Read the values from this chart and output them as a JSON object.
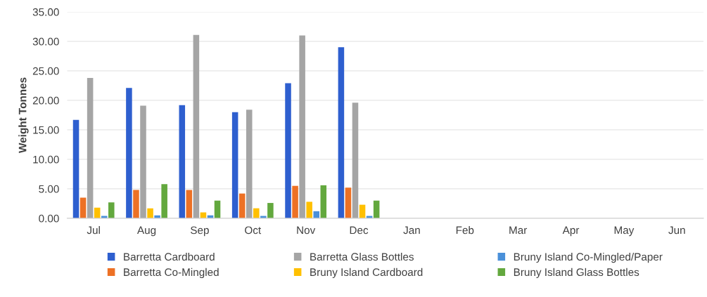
{
  "chart_data": {
    "type": "bar",
    "ylabel": "Weight Tonnes",
    "categories": [
      "Jul",
      "Aug",
      "Sep",
      "Oct",
      "Nov",
      "Dec",
      "Jan",
      "Feb",
      "Mar",
      "Apr",
      "May",
      "Jun"
    ],
    "series": [
      {
        "name": "Barretta Cardboard",
        "color": "#2e5fcf",
        "values": [
          16.7,
          22.1,
          19.2,
          18.0,
          22.9,
          29.0,
          null,
          null,
          null,
          null,
          null,
          null
        ]
      },
      {
        "name": "Barretta Co-Mingled",
        "color": "#ed7125",
        "values": [
          3.5,
          4.8,
          4.8,
          4.2,
          5.5,
          5.2,
          null,
          null,
          null,
          null,
          null,
          null
        ]
      },
      {
        "name": "Barretta Glass Bottles",
        "color": "#a5a5a5",
        "values": [
          23.8,
          19.1,
          31.1,
          18.4,
          31.0,
          19.6,
          null,
          null,
          null,
          null,
          null,
          null
        ]
      },
      {
        "name": "Bruny Island Cardboard",
        "color": "#ffc000",
        "values": [
          1.8,
          1.7,
          1.0,
          1.7,
          2.8,
          2.3,
          null,
          null,
          null,
          null,
          null,
          null
        ]
      },
      {
        "name": "Bruny Island Co-Mingled/Paper",
        "color": "#4a90d9",
        "values": [
          0.4,
          0.5,
          0.5,
          0.4,
          1.2,
          0.4,
          null,
          null,
          null,
          null,
          null,
          null
        ]
      },
      {
        "name": "Bruny Island Glass Bottles",
        "color": "#63a83e",
        "values": [
          2.7,
          5.8,
          3.0,
          2.6,
          5.6,
          3.0,
          null,
          null,
          null,
          null,
          null,
          null
        ]
      }
    ],
    "ylim": [
      0,
      35
    ],
    "yticks": [
      {
        "value": 0,
        "label": "0.00"
      },
      {
        "value": 5,
        "label": "5.00"
      },
      {
        "value": 10,
        "label": "10.00"
      },
      {
        "value": 15,
        "label": "15.00"
      },
      {
        "value": 20,
        "label": "20.00"
      },
      {
        "value": 25,
        "label": "25.00"
      },
      {
        "value": 30,
        "label": "30.00"
      },
      {
        "value": 35,
        "label": "35.00"
      }
    ],
    "grid": "y",
    "legend": "bottom"
  }
}
